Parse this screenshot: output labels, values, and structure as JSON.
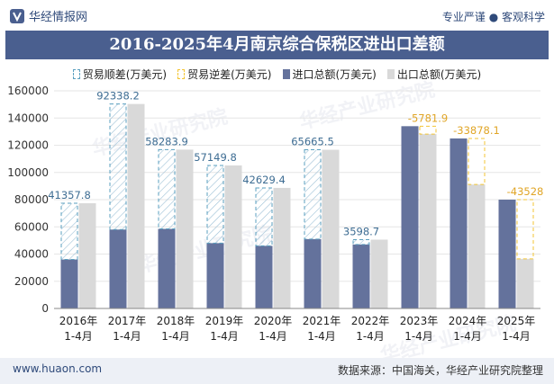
{
  "header": {
    "brand": "华经情报网",
    "tagline": "专业严谨 ● 客观科学",
    "title": "2016-2025年4月南京综合保税区进出口差额"
  },
  "legend": {
    "surplus": "贸易顺差(万美元)",
    "deficit": "贸易逆差(万美元)",
    "imports": "进口总额(万美元)",
    "exports": "出口总额(万美元)"
  },
  "watermarks": [
    "华经产业研究院",
    "华经产业研究院",
    "华经产业研究院",
    "华经产业研究院"
  ],
  "footer": {
    "left": "www.huaon.com",
    "right": "数据来源：中国海关，华经产业研究院整理"
  },
  "colors": {
    "imports": "#64729c",
    "exports": "#d9d9d9",
    "surplus": "#5a9fbf",
    "deficit": "#f3c534",
    "surplus_label": "#3e6d93",
    "deficit_label": "#e0a526",
    "title_bg": "#4a5f8f"
  },
  "chart_data": {
    "type": "bar",
    "categories": [
      "2016年\n1-4月",
      "2017年\n1-4月",
      "2018年\n1-4月",
      "2019年\n1-4月",
      "2020年\n1-4月",
      "2021年\n1-4月",
      "2022年\n1-4月",
      "2023年\n1-4月",
      "2024年\n1-4月",
      "2025年\n1-4月"
    ],
    "series": [
      {
        "name": "进口总额(万美元)",
        "values": [
          36000,
          58000,
          58500,
          48000,
          46000,
          51000,
          47000,
          134000,
          125000,
          80000
        ]
      },
      {
        "name": "出口总额(万美元)",
        "values": [
          77357.8,
          150338.2,
          116783.9,
          105149.8,
          88629.4,
          116665.5,
          50598.7,
          128218.1,
          91121.9,
          36472
        ]
      }
    ],
    "balance": {
      "values": [
        41357.8,
        92338.2,
        58283.9,
        57149.8,
        42629.4,
        65665.5,
        3598.7,
        -5781.9,
        -33878.1,
        -43528
      ],
      "labels": [
        "41357.8",
        "92338.2",
        "58283.9",
        "57149.8",
        "42629.4",
        "65665.5",
        "3598.7",
        "-5781.9",
        "-33878.1",
        "-43528"
      ]
    },
    "y_ticks": [
      "0",
      "20000",
      "40000",
      "60000",
      "80000",
      "100000",
      "120000",
      "140000",
      "160000"
    ],
    "ylim": [
      0,
      160000
    ],
    "grid": true,
    "legend_position": "top"
  }
}
